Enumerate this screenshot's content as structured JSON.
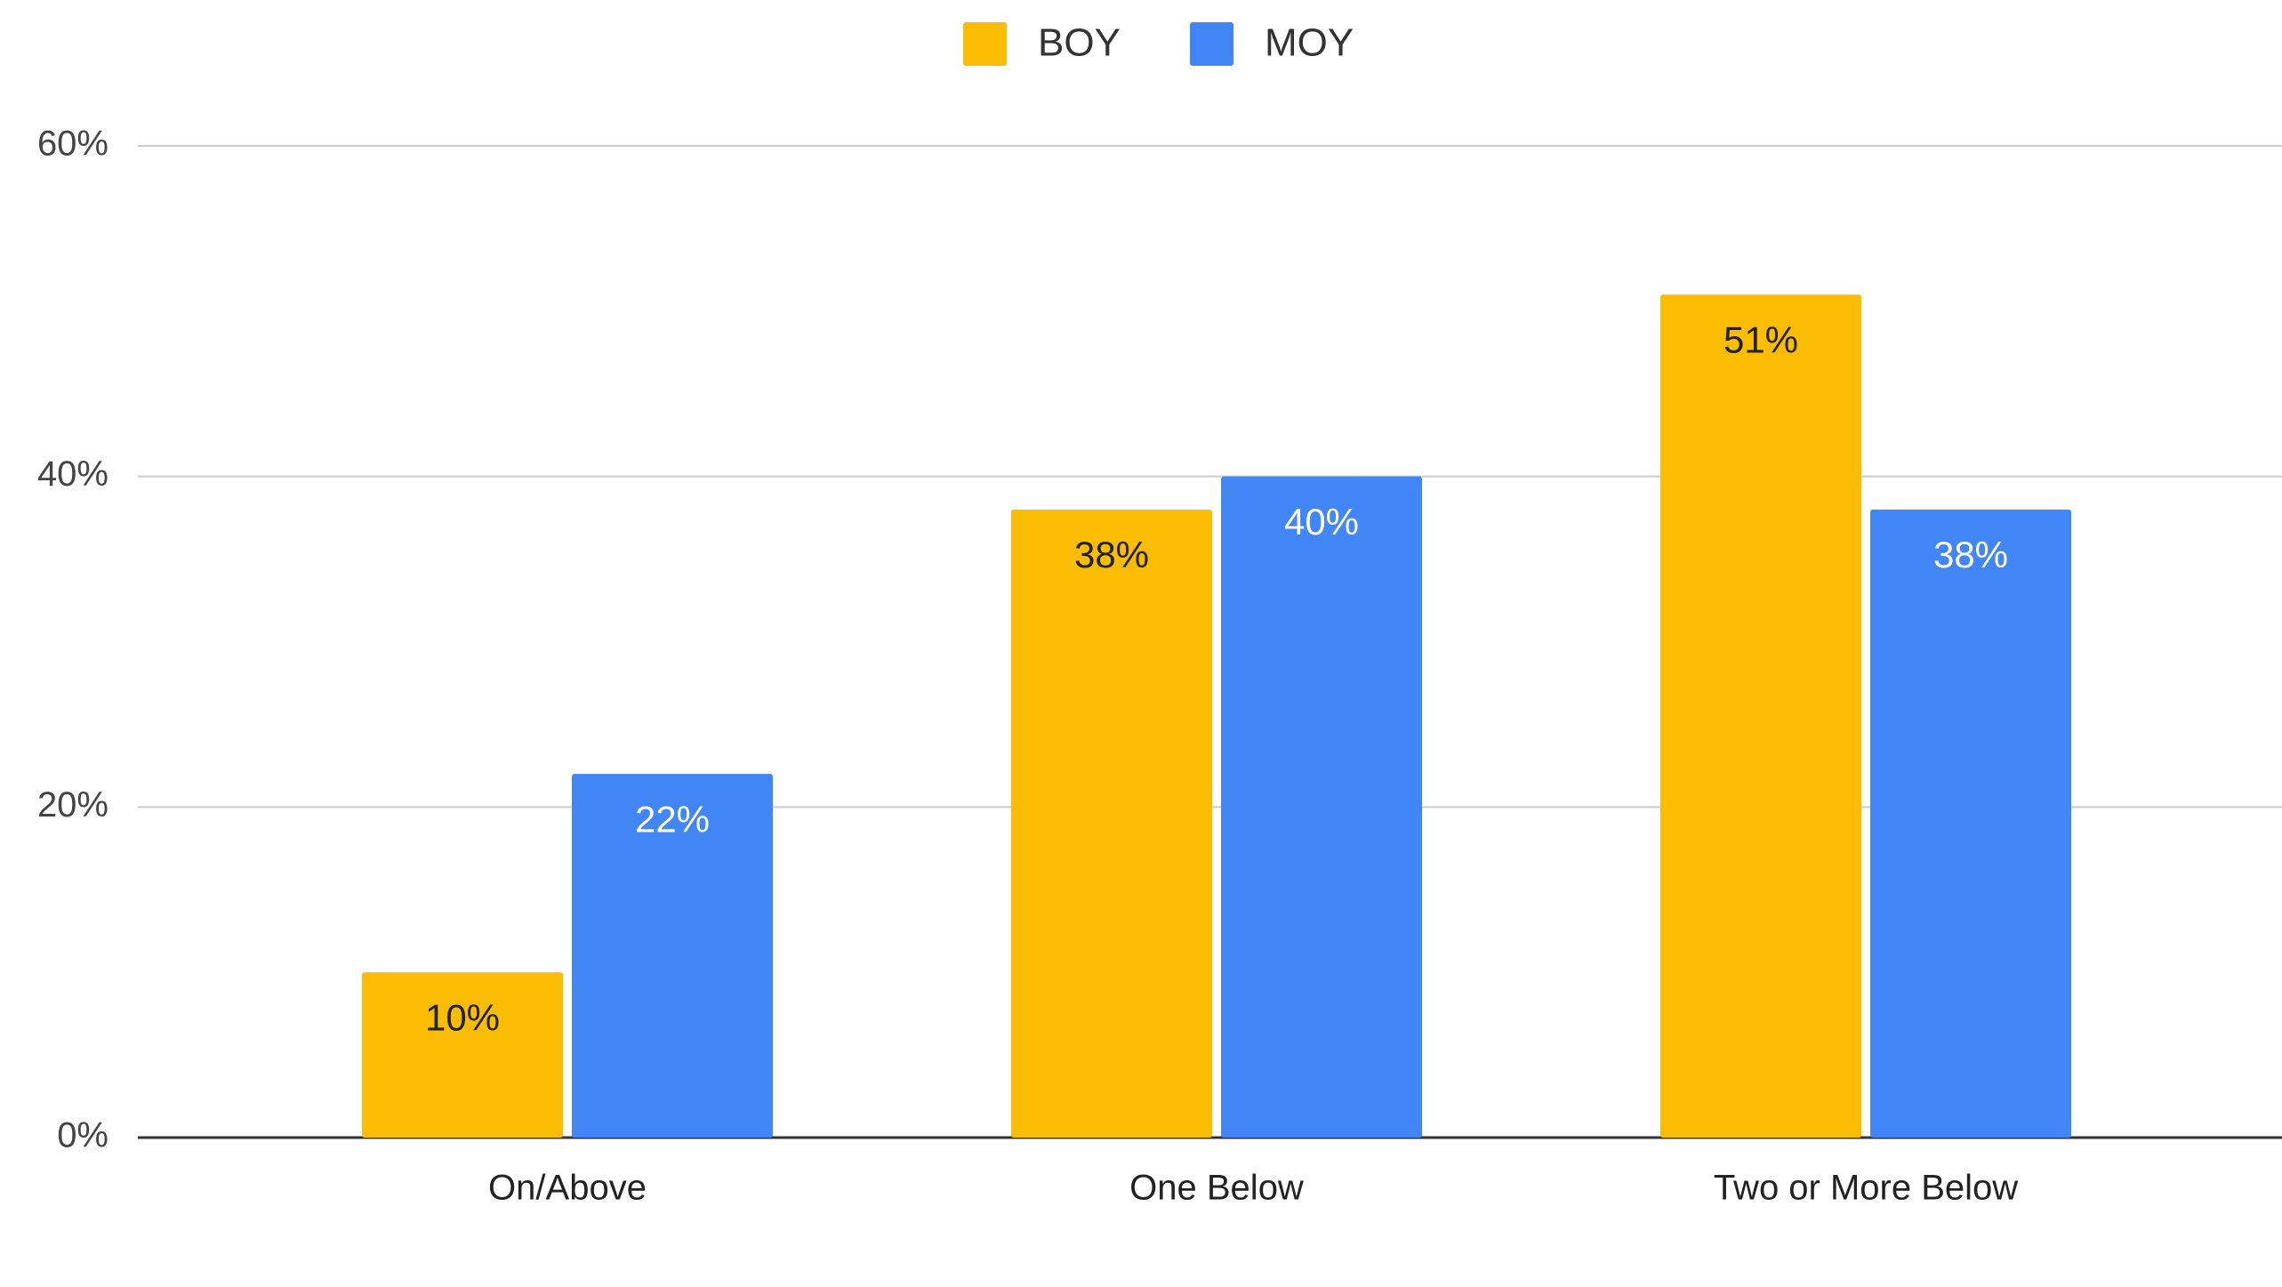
{
  "chart_data": {
    "type": "bar",
    "categories": [
      "On/Above",
      "One Below",
      "Two or More Below"
    ],
    "series": [
      {
        "name": "BOY",
        "color": "#fbbc04",
        "values": [
          10,
          38,
          51
        ],
        "value_labels": [
          "10%",
          "38%",
          "51%"
        ],
        "label_color": "#222222"
      },
      {
        "name": "MOY",
        "color": "#4285f4",
        "values": [
          22,
          40,
          38
        ],
        "value_labels": [
          "22%",
          "40%",
          "38%"
        ],
        "label_color": "#ffffff"
      }
    ],
    "ylim": [
      0,
      60
    ],
    "yticks": [
      {
        "value": 0,
        "label": "0%"
      },
      {
        "value": 20,
        "label": "20%"
      },
      {
        "value": 40,
        "label": "40%"
      },
      {
        "value": 60,
        "label": "60%"
      }
    ],
    "grid": true,
    "legend": "top"
  }
}
